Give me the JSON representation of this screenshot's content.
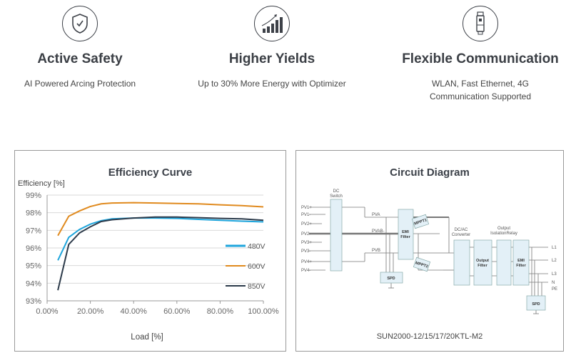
{
  "features": [
    {
      "icon": "shield-check-icon",
      "title": "Active Safety",
      "desc": [
        "AI Powered Arcing Protection"
      ]
    },
    {
      "icon": "growth-chart-icon",
      "title": "Higher Yields",
      "desc": [
        "Up to 30% More Energy with Optimizer"
      ]
    },
    {
      "icon": "dongle-icon",
      "title": "Flexible Communication",
      "desc": [
        "WLAN, Fast Ethernet, 4G",
        "Communication Supported"
      ]
    }
  ],
  "chart_data": {
    "type": "line",
    "title": "Efficiency Curve",
    "ylabel": "Efficiency [%]",
    "xlabel": "Load [%]",
    "ylim": [
      93,
      99
    ],
    "xlim": [
      0,
      100
    ],
    "yticks": [
      "93%",
      "94%",
      "95%",
      "96%",
      "97%",
      "98%",
      "99%"
    ],
    "xticks": [
      "0.00%",
      "20.00%",
      "40.00%",
      "60.00%",
      "80.00%",
      "100.00%"
    ],
    "x": [
      5,
      10,
      15,
      20,
      25,
      30,
      40,
      50,
      60,
      70,
      80,
      90,
      100
    ],
    "grid": true,
    "legend_position": "right",
    "series": [
      {
        "name": "480V",
        "color": "#1ea5dc",
        "values": [
          95.3,
          96.6,
          97.05,
          97.35,
          97.55,
          97.65,
          97.7,
          97.7,
          97.68,
          97.62,
          97.57,
          97.52,
          97.48
        ]
      },
      {
        "name": "600V",
        "color": "#e08a1e",
        "values": [
          96.7,
          97.8,
          98.1,
          98.35,
          98.5,
          98.55,
          98.57,
          98.55,
          98.52,
          98.5,
          98.45,
          98.4,
          98.33
        ]
      },
      {
        "name": "850V",
        "color": "#2c3a4a",
        "values": [
          93.6,
          96.2,
          96.85,
          97.2,
          97.5,
          97.6,
          97.7,
          97.75,
          97.75,
          97.72,
          97.68,
          97.65,
          97.57
        ]
      }
    ]
  },
  "circuit": {
    "title": "Circuit Diagram",
    "caption": "SUN2000-12/15/17/20KTL-M2",
    "dc_switch": [
      "DC",
      "Switch"
    ],
    "pv_inputs": [
      "PV1+",
      "PV1-",
      "PV2+",
      "PV2-",
      "PV3+",
      "PV3-",
      "PV4+",
      "PV4-"
    ],
    "buses": [
      "PVA",
      "PVAB-",
      "PVB"
    ],
    "emi1": [
      "EMI",
      "Filter"
    ],
    "mppt1": "MPPT1",
    "mppt2": "MPPT2",
    "spd1": "SPD",
    "dcac": [
      "DC/AC",
      "Converter"
    ],
    "relay": [
      "Output",
      "IsolationRelay"
    ],
    "outfilter": [
      "Output",
      "Filter"
    ],
    "emi2": [
      "EMI",
      "Filter"
    ],
    "outputs": [
      "L1",
      "L2",
      "L3",
      "N",
      "PE"
    ],
    "spd2": "SPD"
  }
}
